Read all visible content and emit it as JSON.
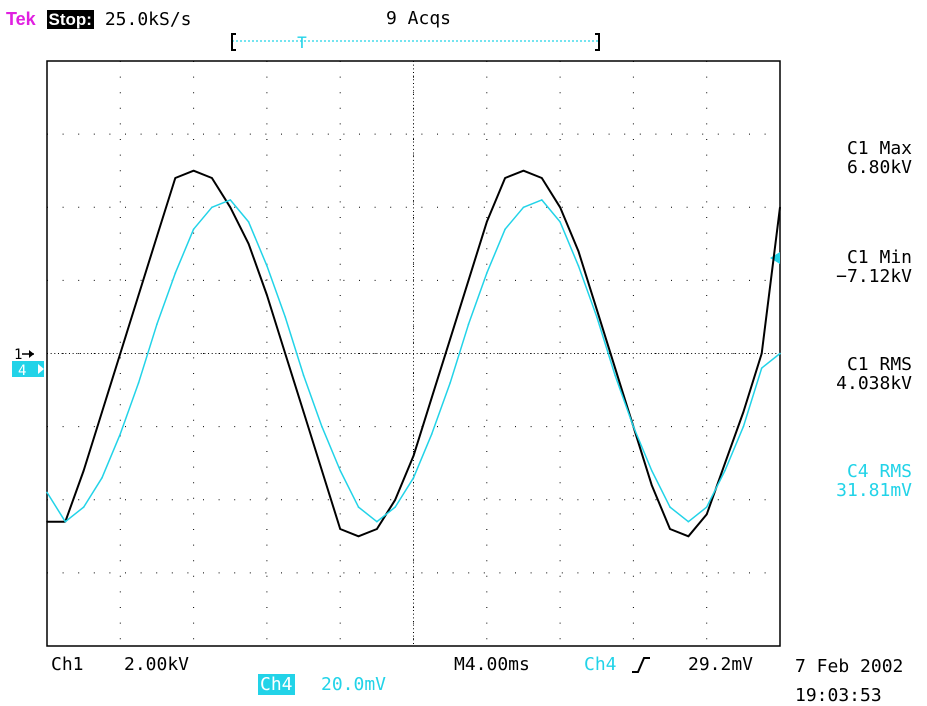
{
  "header": {
    "brand": "Tek",
    "state": "Stop:",
    "sample_rate": "25.0kS/s",
    "acquisitions": "9 Acqs",
    "trigger_marker": "T"
  },
  "channels": {
    "ch1_label": "Ch1",
    "ch1_scale": "2.00kV",
    "ch4_label": "Ch4",
    "ch4_scale": "20.0mV",
    "ch1_marker": "1",
    "ch4_marker": "4"
  },
  "timebase": {
    "label": "M4.00ms",
    "trigger_source": "Ch4",
    "trigger_slope": "rising",
    "trigger_level": "29.2mV"
  },
  "measurements": [
    {
      "name": "C1 Max",
      "value": "6.80kV"
    },
    {
      "name": "C1 Min",
      "value": "−7.12kV"
    },
    {
      "name": "C1 RMS",
      "value": "4.038kV"
    },
    {
      "name": "C4 RMS",
      "value": "31.81mV"
    }
  ],
  "timestamp": {
    "date": "7 Feb 2002",
    "time": "19:03:53"
  },
  "colors": {
    "ch1": "#000000",
    "ch4": "#22d3e8",
    "brand": "#e020e0",
    "grid": "#000000"
  },
  "chart_data": {
    "type": "line",
    "grid": true,
    "xlim": [
      -20,
      20
    ],
    "ylim": [
      -4,
      4
    ],
    "x_unit": "ms",
    "series": [
      {
        "name": "Ch1",
        "color": "#000000",
        "x": [
          -20,
          -19,
          -18,
          -17,
          -16,
          -15,
          -14,
          -13,
          -12,
          -11,
          -10,
          -9,
          -8,
          -7,
          -6,
          -5,
          -4,
          -3,
          -2,
          -1,
          0,
          1,
          2,
          3,
          4,
          5,
          6,
          7,
          8,
          9,
          10,
          11,
          12,
          13,
          14,
          15,
          16,
          17,
          18,
          19,
          20
        ],
        "y": [
          -2.3,
          -2.3,
          -1.6,
          -0.8,
          0.0,
          0.8,
          1.6,
          2.4,
          2.5,
          2.4,
          2.0,
          1.5,
          0.8,
          0.0,
          -0.8,
          -1.6,
          -2.4,
          -2.5,
          -2.4,
          -2.0,
          -1.4,
          -0.6,
          0.2,
          1.0,
          1.8,
          2.4,
          2.5,
          2.4,
          2.0,
          1.4,
          0.6,
          -0.2,
          -1.0,
          -1.8,
          -2.4,
          -2.5,
          -2.2,
          -1.5,
          -0.8,
          0.0,
          2.0
        ]
      },
      {
        "name": "Ch4",
        "color": "#22d3e8",
        "x": [
          -20,
          -19,
          -18,
          -17,
          -16,
          -15,
          -14,
          -13,
          -12,
          -11,
          -10,
          -9,
          -8,
          -7,
          -6,
          -5,
          -4,
          -3,
          -2,
          -1,
          0,
          1,
          2,
          3,
          4,
          5,
          6,
          7,
          8,
          9,
          10,
          11,
          12,
          13,
          14,
          15,
          16,
          17,
          18,
          19,
          20
        ],
        "y": [
          -1.9,
          -2.3,
          -2.1,
          -1.7,
          -1.1,
          -0.4,
          0.4,
          1.1,
          1.7,
          2.0,
          2.1,
          1.8,
          1.2,
          0.5,
          -0.3,
          -1.0,
          -1.6,
          -2.1,
          -2.3,
          -2.1,
          -1.7,
          -1.1,
          -0.4,
          0.4,
          1.1,
          1.7,
          2.0,
          2.1,
          1.8,
          1.2,
          0.5,
          -0.3,
          -1.0,
          -1.6,
          -2.1,
          -2.3,
          -2.1,
          -1.6,
          -1.0,
          -0.2,
          0.0
        ]
      }
    ]
  }
}
